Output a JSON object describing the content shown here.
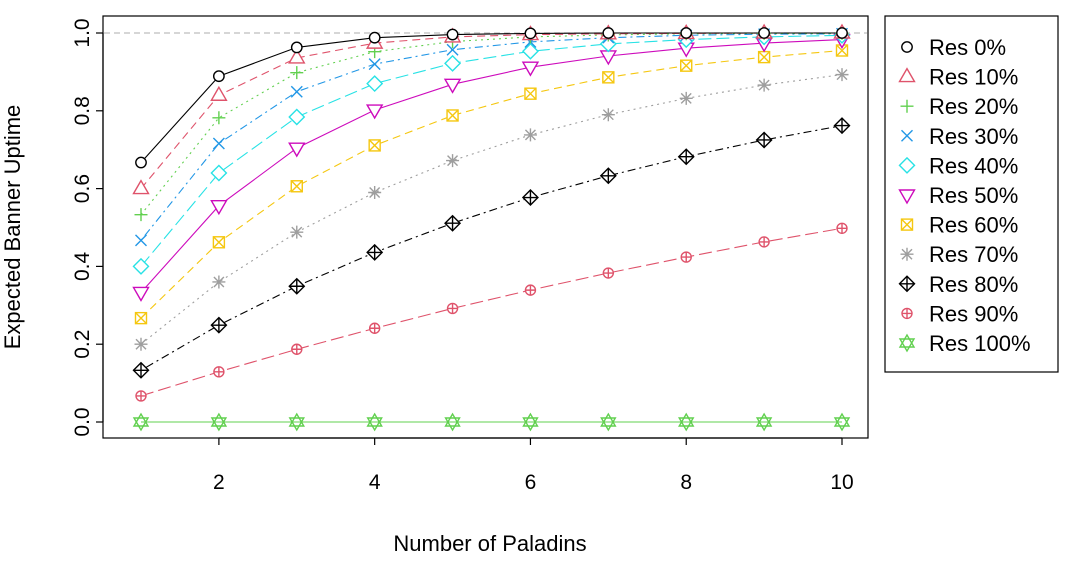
{
  "chart_data": {
    "type": "line",
    "title": "",
    "xlabel": "Number of Paladins",
    "ylabel": "Expected Banner Uptime",
    "xlim": [
      1,
      10
    ],
    "ylim": [
      0,
      1
    ],
    "x": [
      1,
      2,
      3,
      4,
      5,
      6,
      7,
      8,
      9,
      10
    ],
    "xticks": [
      2,
      4,
      6,
      8,
      10
    ],
    "xtick_labels": [
      "2",
      "4",
      "6",
      "8",
      "10"
    ],
    "yticks": [
      0,
      0.2,
      0.4,
      0.6,
      0.8,
      1
    ],
    "ytick_labels": [
      "0.0",
      "0.2",
      "0.4",
      "0.6",
      "0.8",
      "1.0"
    ],
    "reference_line": {
      "y": 1.0,
      "style": "dashed",
      "color": "#bdbdbd"
    },
    "legend_position": "right",
    "series": [
      {
        "name": "Res 0%",
        "color": "#000000",
        "marker": "circle",
        "dash": "solid",
        "values": [
          0.667,
          0.889,
          0.963,
          0.988,
          0.996,
          0.999,
          1.0,
          1.0,
          1.0,
          1.0
        ]
      },
      {
        "name": "Res 10%",
        "color": "#df536b",
        "marker": "triangle",
        "dash": "dashed",
        "values": [
          0.6,
          0.84,
          0.936,
          0.974,
          0.99,
          0.996,
          0.998,
          0.999,
          1.0,
          1.0
        ]
      },
      {
        "name": "Res 20%",
        "color": "#61d04f",
        "marker": "plus",
        "dash": "dotted",
        "values": [
          0.533,
          0.782,
          0.898,
          0.952,
          0.978,
          0.99,
          0.995,
          0.998,
          0.999,
          0.999
        ]
      },
      {
        "name": "Res 30%",
        "color": "#2297e6",
        "marker": "cross",
        "dash": "dotdash",
        "values": [
          0.467,
          0.716,
          0.849,
          0.92,
          0.957,
          0.977,
          0.988,
          0.994,
          0.997,
          0.998
        ]
      },
      {
        "name": "Res 40%",
        "color": "#28e2e5",
        "marker": "diamond",
        "dash": "longdash",
        "values": [
          0.4,
          0.64,
          0.784,
          0.87,
          0.922,
          0.953,
          0.972,
          0.983,
          0.99,
          0.994
        ]
      },
      {
        "name": "Res 50%",
        "color": "#cd0bbc",
        "marker": "triangle-down",
        "dash": "solid",
        "values": [
          0.333,
          0.556,
          0.704,
          0.802,
          0.868,
          0.912,
          0.941,
          0.961,
          0.974,
          0.983
        ]
      },
      {
        "name": "Res 60%",
        "color": "#f5c710",
        "marker": "square-x",
        "dash": "dashed",
        "values": [
          0.267,
          0.462,
          0.606,
          0.711,
          0.788,
          0.844,
          0.886,
          0.916,
          0.938,
          0.955
        ]
      },
      {
        "name": "Res 70%",
        "color": "#9e9e9e",
        "marker": "asterisk",
        "dash": "dotted",
        "values": [
          0.2,
          0.36,
          0.488,
          0.59,
          0.672,
          0.738,
          0.79,
          0.832,
          0.866,
          0.893
        ]
      },
      {
        "name": "Res 80%",
        "color": "#000000",
        "marker": "diamond-plus",
        "dash": "dotdash",
        "values": [
          0.133,
          0.249,
          0.349,
          0.436,
          0.511,
          0.577,
          0.633,
          0.682,
          0.725,
          0.762
        ]
      },
      {
        "name": "Res 90%",
        "color": "#df536b",
        "marker": "circle-plus",
        "dash": "longdash",
        "values": [
          0.067,
          0.129,
          0.187,
          0.241,
          0.292,
          0.339,
          0.383,
          0.424,
          0.463,
          0.498
        ]
      },
      {
        "name": "Res 100%",
        "color": "#61d04f",
        "marker": "star-of-david",
        "dash": "solid",
        "values": [
          0,
          0,
          0,
          0,
          0,
          0,
          0,
          0,
          0,
          0
        ]
      }
    ]
  }
}
